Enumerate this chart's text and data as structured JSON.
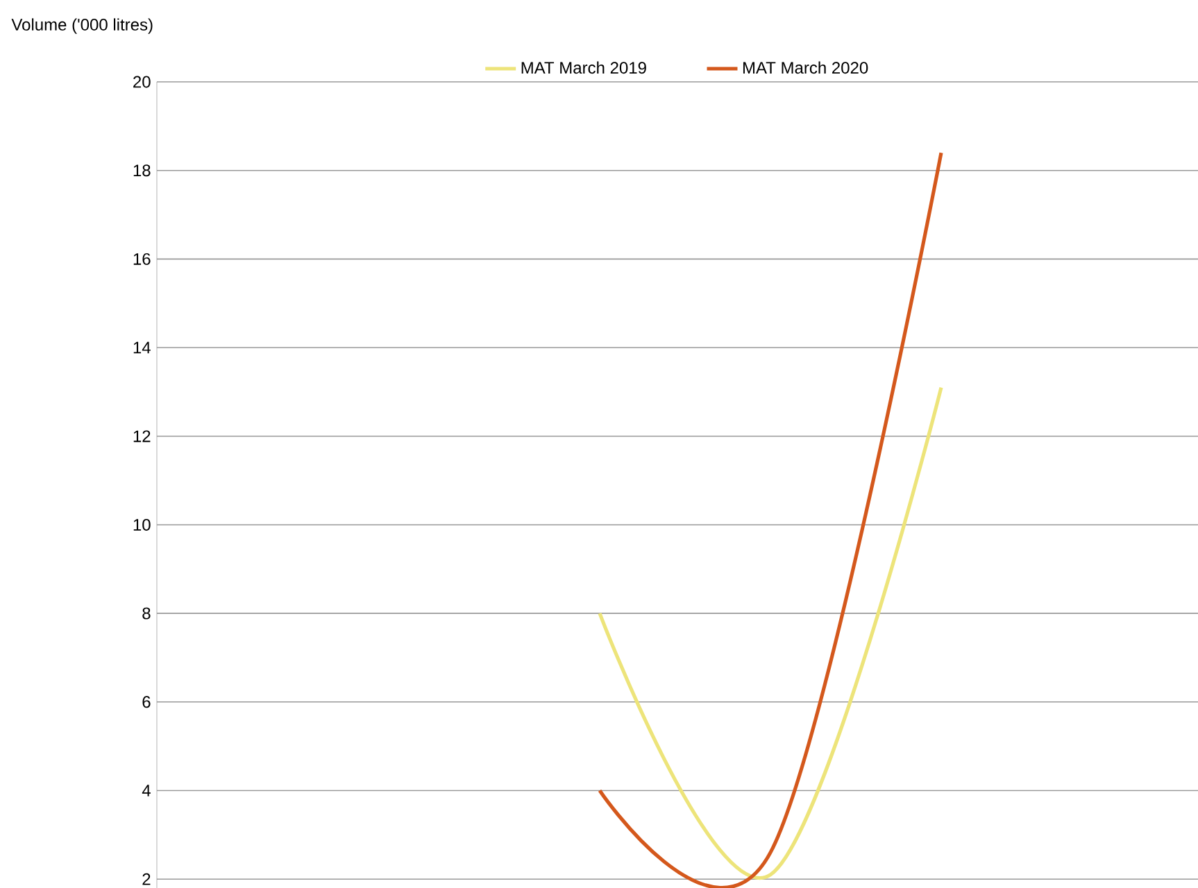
{
  "chart_data": {
    "type": "line",
    "ylabel": "Volume ('000 litres)",
    "categories": [
      null,
      null,
      null,
      null,
      null,
      null
    ],
    "series": [
      {
        "name": "MAT March 2019",
        "color": "#ede47a",
        "values": [
          null,
          null,
          8.0,
          2.1,
          13.1,
          null
        ]
      },
      {
        "name": "MAT March 2020",
        "color": "#d4581c",
        "values": [
          null,
          null,
          4.0,
          2.6,
          18.4,
          null
        ]
      }
    ],
    "ylim": [
      1.8,
      20
    ],
    "yticks": [
      2,
      4,
      6,
      8,
      10,
      12,
      14,
      16,
      18,
      20
    ],
    "grid": "y",
    "legend": "top",
    "marker": "none",
    "line_style": "solid"
  }
}
